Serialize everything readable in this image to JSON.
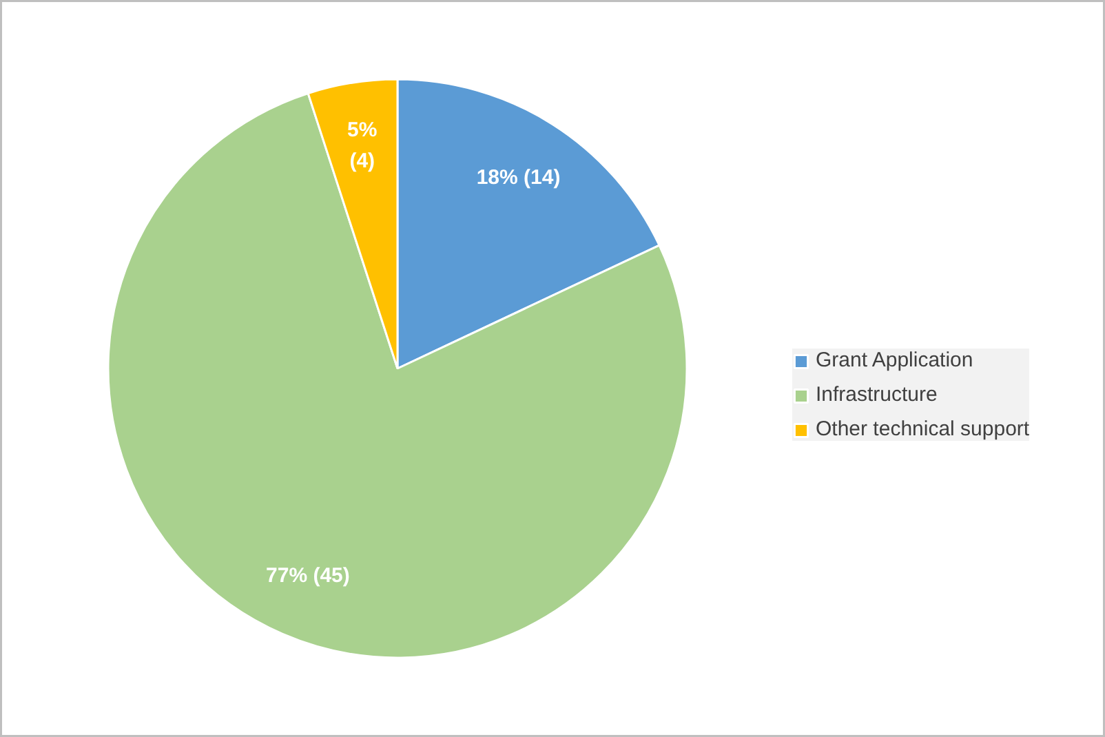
{
  "chart_data": {
    "type": "pie",
    "categories": [
      "Grant Application",
      "Infrastructure",
      "Other technical support"
    ],
    "values": [
      18,
      77,
      5
    ],
    "colors": [
      "#5b9bd5",
      "#a9d18e",
      "#ffc000"
    ],
    "value_labels": [
      "18% (14)",
      "77% (45)",
      "5%\n(4)"
    ],
    "legend": "right"
  }
}
